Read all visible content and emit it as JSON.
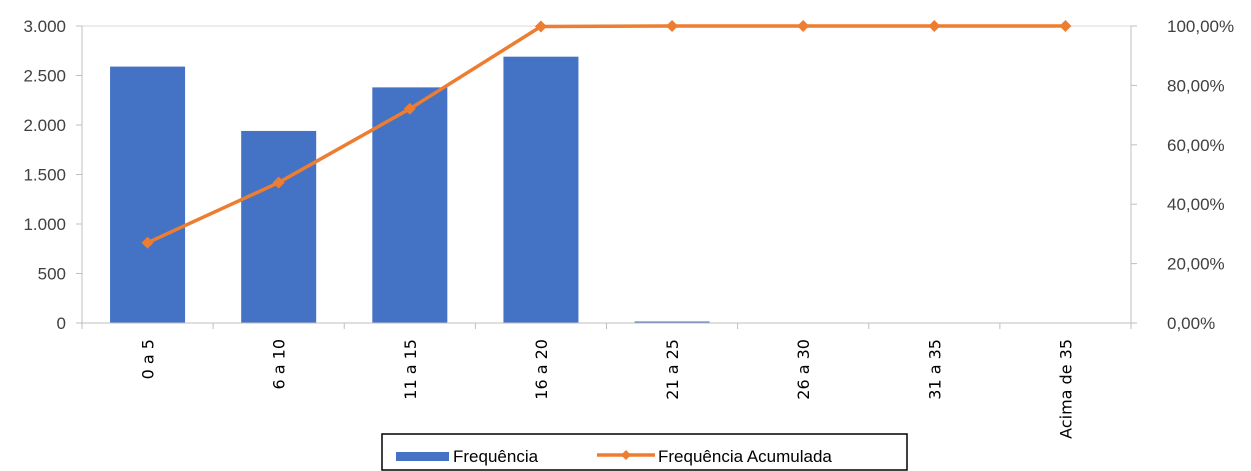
{
  "chart_data": {
    "type": "bar",
    "categories": [
      "0 a 5",
      "6 a 10",
      "11 a 15",
      "16 a 20",
      "21 a 25",
      "26 a 30",
      "31 a 35",
      "Acima de 35"
    ],
    "series": [
      {
        "name": "Frequência",
        "type": "bar",
        "axis": "left",
        "color": "#4472C4",
        "values": [
          2590,
          1940,
          2380,
          2690,
          15,
          0,
          0,
          0
        ]
      },
      {
        "name": "Frequência Acumulada",
        "type": "line",
        "axis": "right",
        "color": "#ED7D31",
        "marker": "diamond",
        "values": [
          0.2703,
          0.4728,
          0.7212,
          0.9984,
          1.0,
          1.0,
          1.0,
          1.0
        ]
      }
    ],
    "y_left": {
      "range": [
        0,
        3000
      ],
      "ticks": [
        0,
        500,
        1000,
        1500,
        2000,
        2500,
        3000
      ],
      "tick_labels": [
        "0",
        "500",
        "1.000",
        "1.500",
        "2.000",
        "2.500",
        "3.000"
      ]
    },
    "y_right": {
      "range": [
        0,
        1
      ],
      "ticks": [
        0,
        0.2,
        0.4,
        0.6,
        0.8,
        1.0
      ],
      "tick_labels": [
        "0,00%",
        "20,00%",
        "40,00%",
        "60,00%",
        "80,00%",
        "100,00%"
      ]
    },
    "grid": false,
    "legend": {
      "placement": "bottom",
      "entries": [
        "Frequência",
        "Frequência Acumulada"
      ]
    }
  }
}
